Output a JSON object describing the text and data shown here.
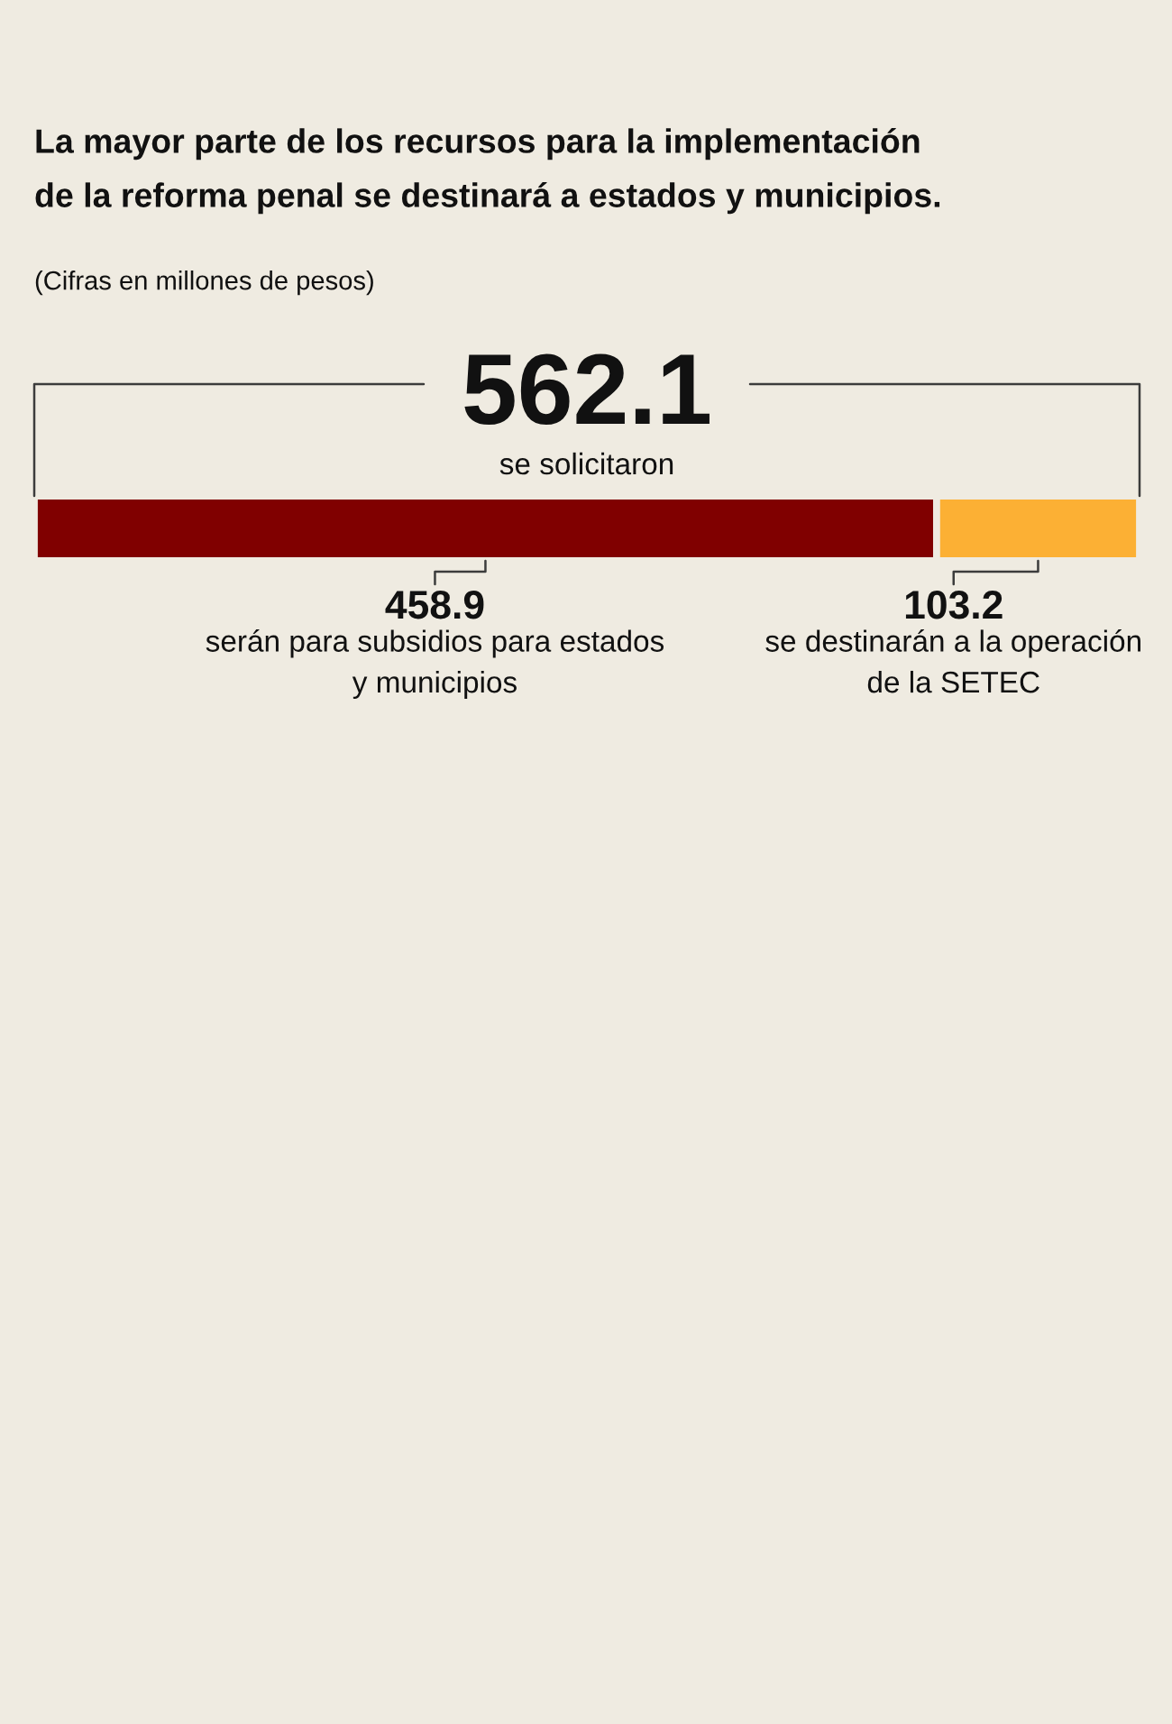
{
  "chart_data": {
    "type": "bar",
    "title": "La mayor parte de los recursos para la implementación\nde la reforma penal se destinará a estados y municipios.",
    "subtitle": "(Cifras en millones de pesos)",
    "orientation": "horizontal",
    "stacked": true,
    "categories": [
      null
    ],
    "series": [
      {
        "name": "serán para subsidios para estados\ny municipios",
        "color": "#800000",
        "values": [
          458.9
        ]
      },
      {
        "name": "se destinarán a la operación\nde la SETEC",
        "color": "#fcb034",
        "values": [
          103.2
        ]
      }
    ],
    "tick_labels": false,
    "data_labels": true,
    "totals": [
      "562.1"
    ],
    "annotations": [
      "se solicitaron"
    ]
  }
}
